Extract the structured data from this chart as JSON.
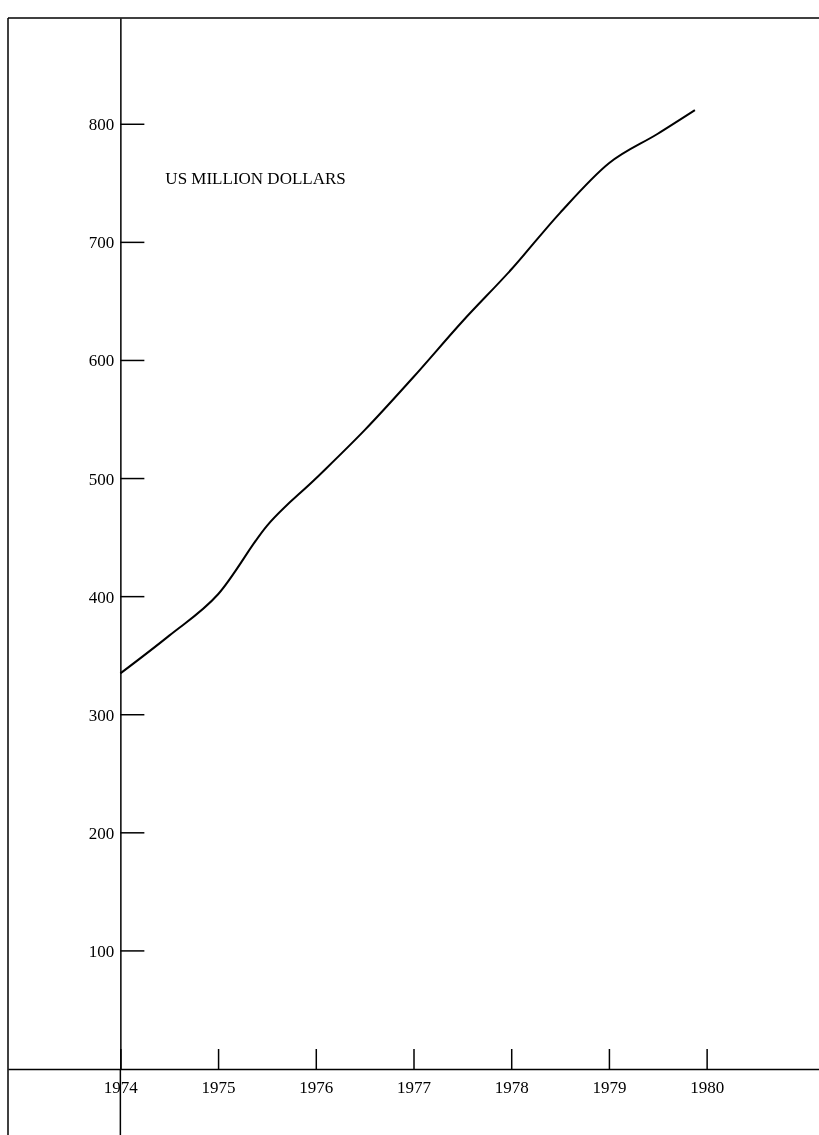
{
  "chart_data": {
    "type": "line",
    "ylabel": "US MILLION DOLLARS",
    "x": [
      1974,
      1974.5,
      1975,
      1975.5,
      1976,
      1976.5,
      1977,
      1977.5,
      1978,
      1978.5,
      1979,
      1979.5,
      1979.88
    ],
    "values": [
      335,
      367,
      402,
      460,
      500,
      541,
      586,
      633,
      677,
      725,
      767,
      792,
      812
    ],
    "color": "#000000",
    "xlim": [
      1972.85,
      1981.15
    ],
    "ylim": [
      0,
      890
    ],
    "xticks": [
      1974,
      1975,
      1976,
      1977,
      1978,
      1979,
      1980
    ],
    "yticks": [
      100,
      200,
      300,
      400,
      500,
      600,
      700,
      800
    ],
    "grid": false,
    "marker": "none",
    "line_style": "solid"
  }
}
